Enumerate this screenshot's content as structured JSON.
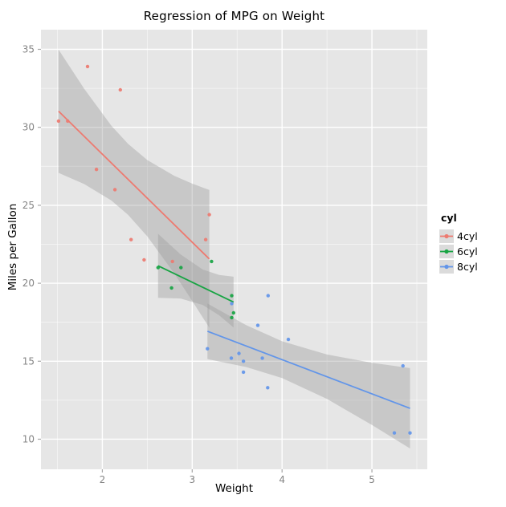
{
  "chart_data": {
    "type": "scatter",
    "title": "Regression of MPG on Weight",
    "xlabel": "Weight",
    "ylabel": "Miles per Gallon",
    "xlim": [
      1.317,
      5.616
    ],
    "ylim": [
      8.07,
      36.26
    ],
    "x_ticks": [
      2,
      3,
      4,
      5
    ],
    "y_ticks": [
      10,
      15,
      20,
      25,
      30,
      35
    ],
    "x_minor_ticks": [
      1.5,
      2.5,
      3.5,
      4.5,
      5.5
    ],
    "y_minor_ticks": [
      12.5,
      17.5,
      22.5,
      27.5,
      32.5
    ],
    "grid": true,
    "legend": {
      "title": "cyl",
      "position": "right",
      "entries": [
        {
          "label": "4cyl"
        },
        {
          "label": "6cyl"
        },
        {
          "label": "8cyl"
        }
      ]
    },
    "series": [
      {
        "name": "4cyl",
        "color": "#ED7A70",
        "points": [
          [
            2.32,
            22.8
          ],
          [
            3.19,
            24.4
          ],
          [
            3.15,
            22.8
          ],
          [
            2.2,
            32.4
          ],
          [
            1.615,
            30.4
          ],
          [
            1.835,
            33.9
          ],
          [
            2.465,
            21.5
          ],
          [
            1.935,
            27.3
          ],
          [
            2.14,
            26.0
          ],
          [
            1.513,
            30.4
          ],
          [
            2.78,
            21.4
          ]
        ],
        "regression_line": {
          "x1": 1.513,
          "y1": 31.03,
          "x2": 3.19,
          "y2": 21.56
        },
        "confidence_band": [
          [
            1.513,
            27.08,
            34.98
          ],
          [
            1.8,
            26.36,
            32.46
          ],
          [
            2.1,
            25.31,
            30.11
          ],
          [
            2.286,
            24.39,
            28.94
          ],
          [
            2.5,
            23.01,
            27.9
          ],
          [
            2.8,
            20.63,
            26.89
          ],
          [
            3.0,
            18.87,
            26.39
          ],
          [
            3.19,
            17.15,
            25.98
          ]
        ]
      },
      {
        "name": "6cyl",
        "color": "#17A443",
        "points": [
          [
            2.62,
            21.0
          ],
          [
            2.875,
            21.0
          ],
          [
            3.215,
            21.4
          ],
          [
            3.46,
            18.1
          ],
          [
            3.44,
            19.2
          ],
          [
            3.44,
            17.8
          ],
          [
            2.77,
            19.7
          ]
        ],
        "regression_line": {
          "x1": 2.62,
          "y1": 21.12,
          "x2": 3.46,
          "y2": 18.79
        },
        "confidence_band": [
          [
            2.62,
            19.07,
            23.17
          ],
          [
            2.87,
            19.02,
            21.85
          ],
          [
            3.117,
            18.61,
            20.88
          ],
          [
            3.3,
            17.94,
            20.53
          ],
          [
            3.46,
            17.16,
            20.42
          ]
        ]
      },
      {
        "name": "8cyl",
        "color": "#6295E9",
        "points": [
          [
            3.44,
            18.7
          ],
          [
            3.57,
            14.3
          ],
          [
            4.07,
            16.4
          ],
          [
            3.73,
            17.3
          ],
          [
            3.78,
            15.2
          ],
          [
            5.25,
            10.4
          ],
          [
            5.424,
            10.4
          ],
          [
            5.345,
            14.7
          ],
          [
            3.52,
            15.5
          ],
          [
            3.435,
            15.2
          ],
          [
            3.84,
            13.3
          ],
          [
            3.845,
            19.2
          ],
          [
            3.17,
            15.8
          ],
          [
            3.57,
            15.0
          ]
        ],
        "regression_line": {
          "x1": 3.17,
          "y1": 16.92,
          "x2": 5.424,
          "y2": 11.98
        },
        "confidence_band": [
          [
            3.17,
            15.14,
            18.7
          ],
          [
            3.6,
            14.63,
            17.32
          ],
          [
            4.0,
            13.92,
            16.28
          ],
          [
            4.5,
            12.58,
            15.43
          ],
          [
            5.0,
            10.91,
            14.9
          ],
          [
            5.424,
            9.4,
            14.56
          ]
        ]
      }
    ],
    "style": {
      "panel_bg": "#E6E6E6",
      "grid_color": "#FFFFFF",
      "ribbon_color": "#999999",
      "ribbon_opacity": 0.38,
      "tick_color": "#A6A6A6",
      "tick_label_color": "#848484",
      "legend_key_bg": "#DBDBDB"
    }
  }
}
